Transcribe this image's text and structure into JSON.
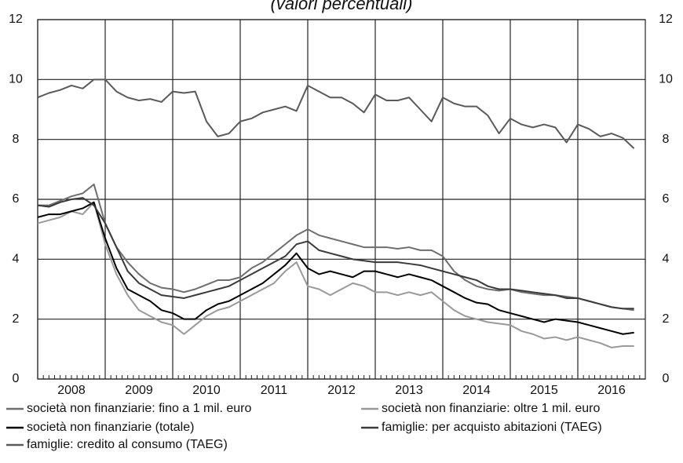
{
  "chart_data": {
    "type": "line",
    "title": "(valori percentuali)",
    "x": [
      2008,
      2008.167,
      2008.333,
      2008.5,
      2008.667,
      2008.833,
      2009,
      2009.167,
      2009.333,
      2009.5,
      2009.667,
      2009.833,
      2010,
      2010.167,
      2010.333,
      2010.5,
      2010.667,
      2010.833,
      2011,
      2011.167,
      2011.333,
      2011.5,
      2011.667,
      2011.833,
      2012,
      2012.167,
      2012.333,
      2012.5,
      2012.667,
      2012.833,
      2013,
      2013.167,
      2013.333,
      2013.5,
      2013.667,
      2013.833,
      2014,
      2014.167,
      2014.333,
      2014.5,
      2014.667,
      2014.833,
      2015,
      2015.167,
      2015.333,
      2015.5,
      2015.667,
      2015.833,
      2016,
      2016.167,
      2016.333,
      2016.5,
      2016.667,
      2016.833
    ],
    "series": [
      {
        "name": "società non finanziarie: fino a 1 mil. euro",
        "color": "#6e6e6e",
        "values": [
          5.8,
          5.8,
          5.95,
          6.1,
          6.2,
          6.5,
          5.2,
          4.4,
          3.9,
          3.5,
          3.2,
          3.05,
          3.0,
          2.9,
          3.0,
          3.15,
          3.3,
          3.3,
          3.4,
          3.7,
          3.9,
          4.2,
          4.5,
          4.8,
          5.0,
          4.8,
          4.7,
          4.6,
          4.5,
          4.4,
          4.4,
          4.4,
          4.35,
          4.4,
          4.3,
          4.3,
          4.1,
          3.6,
          3.3,
          3.1,
          3.0,
          2.95,
          3.0,
          2.9,
          2.85,
          2.8,
          2.8,
          2.75,
          2.7,
          2.6,
          2.5,
          2.4,
          2.35,
          2.3
        ]
      },
      {
        "name": "società non finanziarie: oltre 1 mil. euro",
        "color": "#999999",
        "values": [
          5.2,
          5.3,
          5.4,
          5.6,
          5.5,
          5.9,
          4.5,
          3.5,
          2.8,
          2.3,
          2.1,
          1.9,
          1.8,
          1.5,
          1.8,
          2.1,
          2.3,
          2.4,
          2.6,
          2.8,
          3.0,
          3.2,
          3.6,
          3.9,
          3.1,
          3.0,
          2.8,
          3.0,
          3.2,
          3.1,
          2.9,
          2.9,
          2.8,
          2.9,
          2.8,
          2.9,
          2.6,
          2.3,
          2.1,
          2.0,
          1.9,
          1.85,
          1.8,
          1.6,
          1.5,
          1.35,
          1.4,
          1.3,
          1.4,
          1.3,
          1.2,
          1.05,
          1.1,
          1.1
        ]
      },
      {
        "name": "società non finanziarie (totale)",
        "color": "#000000",
        "values": [
          5.4,
          5.5,
          5.5,
          5.6,
          5.7,
          5.9,
          4.7,
          3.7,
          3.0,
          2.8,
          2.6,
          2.3,
          2.2,
          2.0,
          2.0,
          2.3,
          2.5,
          2.6,
          2.8,
          3.0,
          3.2,
          3.5,
          3.8,
          4.2,
          3.7,
          3.5,
          3.6,
          3.5,
          3.4,
          3.6,
          3.6,
          3.5,
          3.4,
          3.5,
          3.4,
          3.3,
          3.1,
          2.9,
          2.7,
          2.55,
          2.5,
          2.3,
          2.2,
          2.1,
          2.0,
          1.9,
          2.0,
          1.95,
          1.9,
          1.8,
          1.7,
          1.6,
          1.5,
          1.55
        ]
      },
      {
        "name": "famiglie: per acquisto abitazioni (TAEG)",
        "color": "#3a3a3a",
        "values": [
          5.8,
          5.75,
          5.9,
          6.0,
          6.05,
          5.8,
          5.2,
          4.4,
          3.6,
          3.2,
          3.0,
          2.8,
          2.75,
          2.7,
          2.8,
          2.9,
          3.0,
          3.1,
          3.3,
          3.5,
          3.7,
          3.9,
          4.1,
          4.5,
          4.6,
          4.3,
          4.2,
          4.1,
          4.0,
          3.95,
          3.9,
          3.9,
          3.9,
          3.85,
          3.8,
          3.7,
          3.6,
          3.5,
          3.4,
          3.3,
          3.1,
          3.0,
          3.0,
          2.95,
          2.9,
          2.85,
          2.8,
          2.7,
          2.7,
          2.6,
          2.5,
          2.4,
          2.35,
          2.35
        ]
      },
      {
        "name": "famiglie: credito al consumo (TAEG)",
        "color": "#5a5a5a",
        "values": [
          9.4,
          9.55,
          9.65,
          9.8,
          9.7,
          10.0,
          10.0,
          9.6,
          9.4,
          9.3,
          9.35,
          9.25,
          9.6,
          9.55,
          9.6,
          8.6,
          8.1,
          8.2,
          8.6,
          8.7,
          8.9,
          9.0,
          9.1,
          8.95,
          9.8,
          9.6,
          9.4,
          9.4,
          9.2,
          8.9,
          9.5,
          9.3,
          9.3,
          9.4,
          9.0,
          8.6,
          9.4,
          9.2,
          9.1,
          9.1,
          8.8,
          8.2,
          8.7,
          8.5,
          8.4,
          8.5,
          8.4,
          7.9,
          8.5,
          8.35,
          8.1,
          8.2,
          8.05,
          7.7
        ]
      }
    ],
    "xlim": [
      2008,
      2017
    ],
    "xticks": [
      {
        "value": 2008,
        "label": "2008"
      },
      {
        "value": 2009,
        "label": "2009"
      },
      {
        "value": 2010,
        "label": "2010"
      },
      {
        "value": 2011,
        "label": "2011"
      },
      {
        "value": 2012,
        "label": "2012"
      },
      {
        "value": 2013,
        "label": "2013"
      },
      {
        "value": 2014,
        "label": "2014"
      },
      {
        "value": 2015,
        "label": "2015"
      },
      {
        "value": 2016,
        "label": "2016"
      }
    ],
    "ylim": [
      0,
      12
    ],
    "yticks": [
      0,
      2,
      4,
      6,
      8,
      10,
      12
    ],
    "y2lim": [
      0,
      12
    ],
    "y2ticks": [
      0,
      2,
      4,
      6,
      8,
      10,
      12
    ],
    "grid": true
  }
}
